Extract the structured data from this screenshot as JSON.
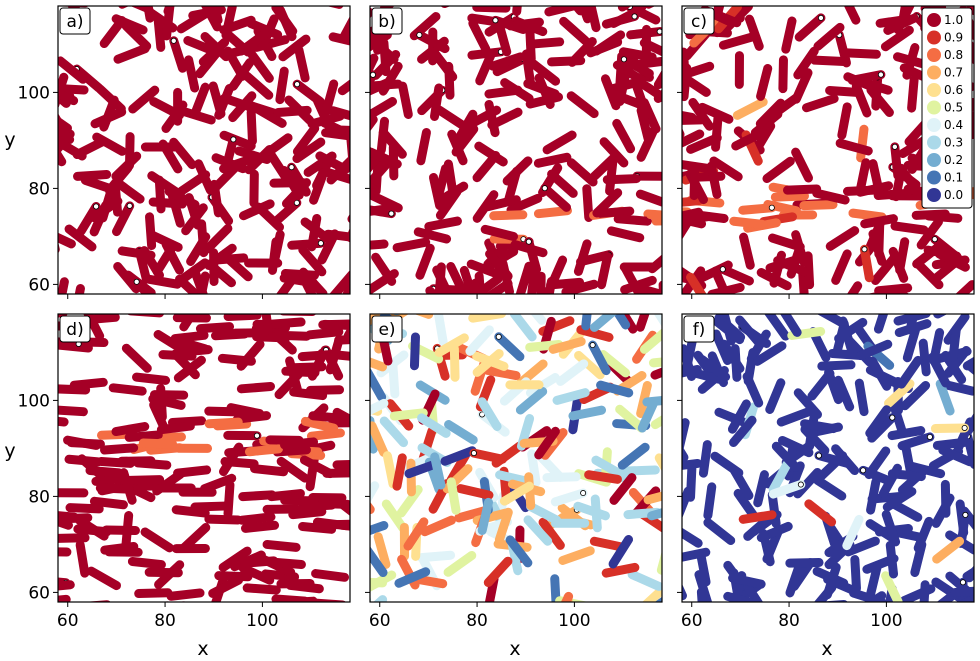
{
  "chart_data": {
    "type": "scatter",
    "description_in_image": "six panels of rod-shaped agents drawn as chains of circles colored by a value from 0 to 1",
    "shared_axes": {
      "xlabel": "x",
      "ylabel": "y",
      "xlim": [
        58,
        118
      ],
      "ylim": [
        58,
        118
      ],
      "xticks": [
        60,
        80,
        100
      ],
      "yticks": [
        60,
        80,
        100
      ]
    },
    "colorbar": {
      "position": "top-right of panel c",
      "entries": [
        {
          "label": "1.0",
          "color": "#a50026"
        },
        {
          "label": "0.9",
          "color": "#d73027"
        },
        {
          "label": "0.8",
          "color": "#f46d43"
        },
        {
          "label": "0.7",
          "color": "#fdae61"
        },
        {
          "label": "0.6",
          "color": "#fee090"
        },
        {
          "label": "0.5",
          "color": "#e0f3a0"
        },
        {
          "label": "0.4",
          "color": "#e0f3f8"
        },
        {
          "label": "0.3",
          "color": "#abd9e9"
        },
        {
          "label": "0.2",
          "color": "#74add1"
        },
        {
          "label": "0.1",
          "color": "#4575b4"
        },
        {
          "label": "0.0",
          "color": "#313695"
        }
      ]
    },
    "panels": [
      {
        "label": "a)",
        "dominant_value": 1.0,
        "seed": 11,
        "bands": []
      },
      {
        "label": "b)",
        "dominant_value": 1.0,
        "seed": 23,
        "bands": [
          {
            "y": 72,
            "value": 0.85
          }
        ]
      },
      {
        "label": "c)",
        "dominant_value": 1.0,
        "seed": 37,
        "bands": [
          {
            "y": 76,
            "value": 0.8
          }
        ]
      },
      {
        "label": "d)",
        "dominant_value": 1.0,
        "seed": 49,
        "bands": [
          {
            "y": 92,
            "value": 0.85
          }
        ]
      },
      {
        "label": "e)",
        "dominant_value": 0.5,
        "seed": 61,
        "bands": []
      },
      {
        "label": "f)",
        "dominant_value": 0.0,
        "seed": 73,
        "bands": []
      }
    ]
  }
}
